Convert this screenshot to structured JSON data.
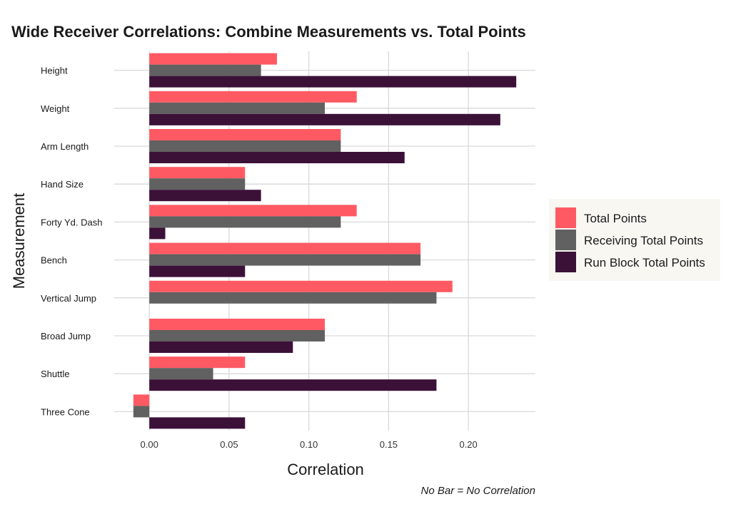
{
  "chart_data": {
    "type": "bar",
    "orientation": "horizontal",
    "title": "Wide Receiver Correlations: Combine Measurements vs. Total Points",
    "xlabel": "Correlation",
    "ylabel": "Measurement",
    "caption": "No Bar = No Correlation",
    "xlim": [
      -0.022,
      0.242
    ],
    "xticks": [
      0.0,
      0.05,
      0.1,
      0.15,
      0.2
    ],
    "xtick_labels": [
      "0.00",
      "0.05",
      "0.10",
      "0.15",
      "0.20"
    ],
    "grid": true,
    "legend_position": "right",
    "categories": [
      "Height",
      "Weight",
      "Arm Length",
      "Hand Size",
      "Forty Yd. Dash",
      "Bench",
      "Vertical Jump",
      "Broad Jump",
      "Shuttle",
      "Three Cone"
    ],
    "series": [
      {
        "name": "Total Points",
        "color": "#FF5A64",
        "values": [
          0.08,
          0.13,
          0.12,
          0.06,
          0.13,
          0.17,
          0.19,
          0.11,
          0.06,
          -0.01
        ]
      },
      {
        "name": "Receiving Total Points",
        "color": "#616161",
        "values": [
          0.07,
          0.11,
          0.12,
          0.06,
          0.12,
          0.17,
          0.18,
          0.11,
          0.04,
          -0.01
        ]
      },
      {
        "name": "Run Block Total Points",
        "color": "#3C1138",
        "values": [
          0.23,
          0.22,
          0.16,
          0.07,
          0.01,
          0.06,
          0.0,
          0.09,
          0.18,
          0.06
        ]
      }
    ]
  }
}
